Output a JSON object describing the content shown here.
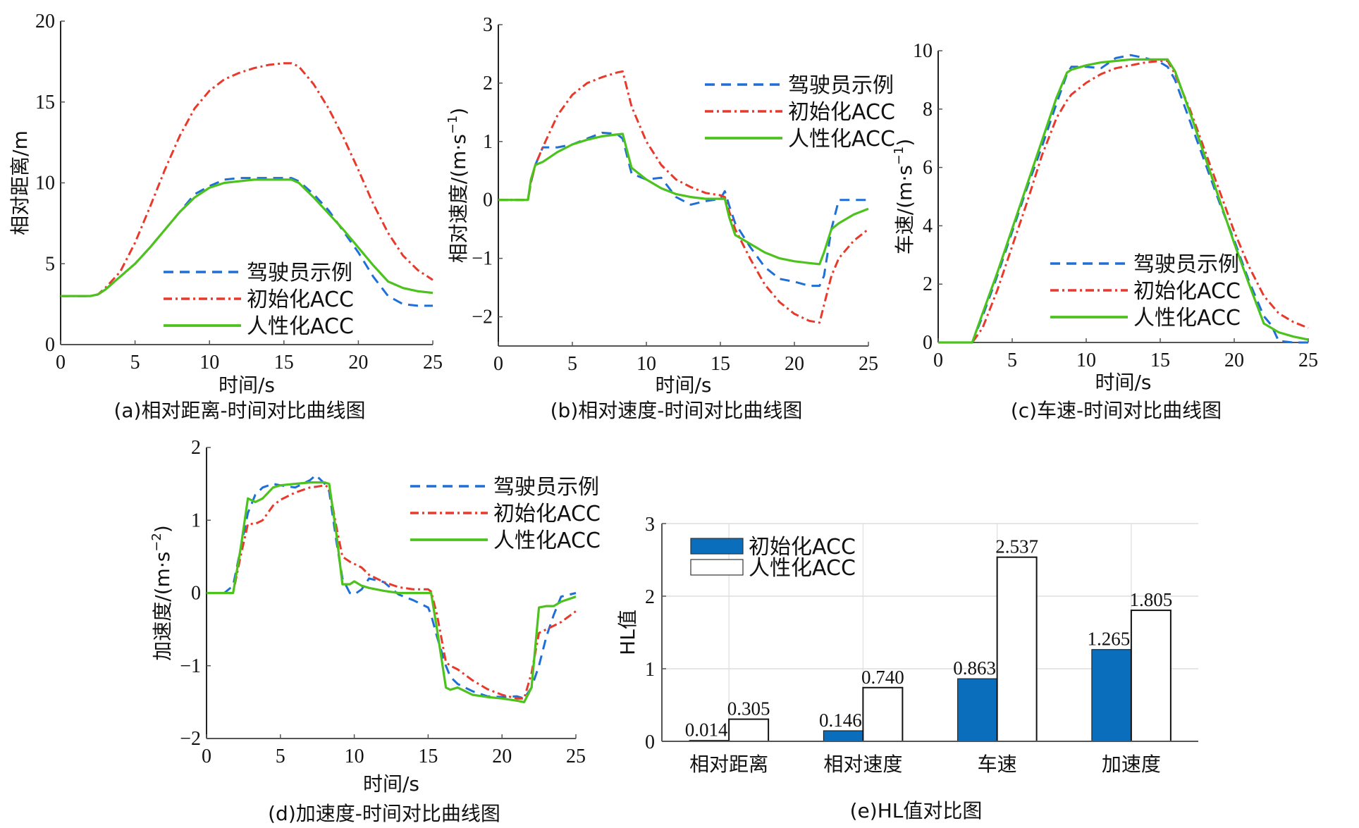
{
  "colors": {
    "driver": "#1f6fd6",
    "initial": "#e8392b",
    "human": "#4cc21c",
    "bar_initial": "#0a6ebd",
    "bar_human": "#ffffff",
    "axis": "#555555",
    "grid": "#dddddd"
  },
  "legend_labels": [
    "驾驶员示例",
    "初始化ACC",
    "人性化ACC"
  ],
  "chart_data": [
    {
      "id": "a",
      "type": "line",
      "caption": "(a)相对距离-时间对比曲线图",
      "xlabel": "时间/s",
      "ylabel": "相对距离/m",
      "xlim": [
        0,
        25
      ],
      "ylim": [
        0,
        20
      ],
      "xticks": [
        "0",
        "5",
        "10",
        "15",
        "20",
        "25"
      ],
      "yticks": [
        "0",
        "5",
        "10",
        "15",
        "20"
      ],
      "legend": "bottom-center",
      "x": [
        0,
        2,
        2.5,
        3,
        4,
        5,
        6,
        7,
        8,
        9,
        10,
        11,
        12,
        13,
        14,
        15,
        15.5,
        16,
        17,
        18,
        19,
        20,
        21,
        22,
        23,
        24,
        25
      ],
      "series": [
        {
          "name": "驾驶员示例",
          "style": "dash",
          "values": [
            3,
            3,
            3.1,
            3.4,
            4.2,
            5.0,
            6.0,
            7.1,
            8.2,
            9.3,
            9.8,
            10.2,
            10.3,
            10.3,
            10.3,
            10.3,
            10.3,
            10.1,
            9.3,
            8.3,
            7.0,
            5.7,
            4.2,
            3.0,
            2.5,
            2.4,
            2.4
          ]
        },
        {
          "name": "初始化ACC",
          "style": "dashdot",
          "values": [
            3,
            3,
            3.1,
            3.5,
            4.5,
            6.3,
            8.5,
            10.8,
            12.9,
            14.6,
            15.7,
            16.4,
            16.8,
            17.1,
            17.3,
            17.4,
            17.4,
            17.2,
            16.1,
            14.6,
            12.8,
            10.8,
            8.7,
            6.9,
            5.5,
            4.6,
            4.0
          ]
        },
        {
          "name": "人性化ACC",
          "style": "solid",
          "values": [
            3,
            3,
            3.1,
            3.4,
            4.2,
            5.0,
            6.0,
            7.1,
            8.2,
            9.1,
            9.7,
            10.0,
            10.1,
            10.2,
            10.2,
            10.2,
            10.2,
            10.0,
            9.1,
            8.1,
            7.1,
            6.0,
            4.9,
            3.9,
            3.5,
            3.3,
            3.2
          ]
        }
      ]
    },
    {
      "id": "b",
      "type": "line",
      "caption": "(b)相对速度-时间对比曲线图",
      "xlabel": "时间/s",
      "ylabel": "相对速度/(m·s",
      "ylabel_sup": "−1",
      "ylabel_end": ")",
      "xlim": [
        0,
        25
      ],
      "ylim": [
        -2.5,
        3
      ],
      "xticks": [
        "0",
        "5",
        "10",
        "15",
        "20",
        "25"
      ],
      "yticks": [
        "−2",
        "−1",
        "0",
        "1",
        "2",
        "3"
      ],
      "ytick_values": [
        -2,
        -1,
        0,
        1,
        2,
        3
      ],
      "legend": "top-right",
      "x": [
        0,
        2,
        2.2,
        2.5,
        3,
        4,
        5,
        6,
        7,
        8,
        8.4,
        9,
        10,
        11,
        12,
        13,
        14,
        15,
        15.3,
        15.6,
        16,
        17,
        18,
        19,
        20,
        21,
        21.7,
        22,
        22.5,
        23,
        24,
        25
      ],
      "series": [
        {
          "name": "驾驶员示例",
          "style": "dash",
          "values": [
            0,
            0,
            0.3,
            0.6,
            0.9,
            0.9,
            0.95,
            1.05,
            1.15,
            1.13,
            1.05,
            0.45,
            0.35,
            0.38,
            0.05,
            -0.08,
            -0.02,
            0.02,
            0.15,
            -0.1,
            -0.4,
            -0.8,
            -1.15,
            -1.35,
            -1.4,
            -1.47,
            -1.47,
            -1.3,
            -0.5,
            0,
            0,
            0
          ]
        },
        {
          "name": "初始化ACC",
          "style": "dashdot",
          "values": [
            0,
            0,
            0.3,
            0.6,
            0.9,
            1.45,
            1.8,
            2.0,
            2.1,
            2.18,
            2.2,
            1.6,
            1.0,
            0.6,
            0.35,
            0.22,
            0.12,
            0.08,
            0.05,
            -0.2,
            -0.5,
            -1.0,
            -1.45,
            -1.75,
            -1.95,
            -2.07,
            -2.1,
            -1.8,
            -1.3,
            -1.0,
            -0.7,
            -0.5
          ]
        },
        {
          "name": "人性化ACC",
          "style": "solid",
          "values": [
            0,
            0,
            0.35,
            0.6,
            0.65,
            0.82,
            0.95,
            1.03,
            1.09,
            1.12,
            1.13,
            0.55,
            0.35,
            0.2,
            0.1,
            0.05,
            0.02,
            0.02,
            0.02,
            -0.3,
            -0.6,
            -0.75,
            -0.9,
            -1.0,
            -1.05,
            -1.08,
            -1.1,
            -0.9,
            -0.5,
            -0.4,
            -0.25,
            -0.15
          ]
        }
      ]
    },
    {
      "id": "c",
      "type": "line",
      "caption": "(c)车速-时间对比曲线图",
      "xlabel": "时间/s",
      "ylabel": "车速/(m·s",
      "ylabel_sup": "−1",
      "ylabel_end": ")",
      "xlim": [
        0,
        25
      ],
      "ylim": [
        0,
        10
      ],
      "xticks": [
        "0",
        "5",
        "10",
        "15",
        "20",
        "25"
      ],
      "yticks": [
        "0",
        "2",
        "4",
        "6",
        "8",
        "10"
      ],
      "legend": "bottom-center",
      "x": [
        0,
        2,
        2.3,
        3,
        4,
        5,
        6,
        7,
        8,
        8.7,
        9,
        10,
        11,
        12,
        13,
        14,
        15,
        15.5,
        16,
        17,
        18,
        19,
        20,
        21,
        22,
        22.5,
        23,
        24,
        25
      ],
      "series": [
        {
          "name": "驾驶员示例",
          "style": "dash",
          "values": [
            0,
            0,
            0,
            0.9,
            2.3,
            3.8,
            5.3,
            6.7,
            8.2,
            9.2,
            9.45,
            9.45,
            9.4,
            9.75,
            9.85,
            9.75,
            9.6,
            9.45,
            9.0,
            7.6,
            6.2,
            4.8,
            3.5,
            2.1,
            0.9,
            0.6,
            0.05,
            0,
            0
          ]
        },
        {
          "name": "初始化ACC",
          "style": "dashdot",
          "values": [
            0,
            0,
            0,
            0.5,
            1.8,
            3.3,
            4.8,
            6.4,
            7.7,
            8.3,
            8.5,
            8.9,
            9.2,
            9.4,
            9.5,
            9.6,
            9.65,
            9.65,
            9.2,
            8.0,
            6.6,
            5.2,
            3.8,
            2.6,
            1.6,
            1.3,
            1.0,
            0.7,
            0.5
          ]
        },
        {
          "name": "人性化ACC",
          "style": "solid",
          "values": [
            0,
            0,
            0,
            1.0,
            2.4,
            3.9,
            5.4,
            6.9,
            8.4,
            9.25,
            9.35,
            9.5,
            9.6,
            9.65,
            9.7,
            9.7,
            9.7,
            9.7,
            9.3,
            7.9,
            6.4,
            4.9,
            3.4,
            2.0,
            0.65,
            0.5,
            0.35,
            0.2,
            0.1
          ]
        }
      ]
    },
    {
      "id": "d",
      "type": "line",
      "caption": "(d)加速度-时间对比曲线图",
      "xlabel": "时间/s",
      "ylabel": "加速度/(m·s",
      "ylabel_sup": "−2",
      "ylabel_end": ")",
      "xlim": [
        0,
        25
      ],
      "ylim": [
        -2,
        2
      ],
      "xticks": [
        "0",
        "5",
        "10",
        "15",
        "20",
        "25"
      ],
      "yticks": [
        "−2",
        "−1",
        "0",
        "1",
        "2"
      ],
      "ytick_values": [
        -2,
        -1,
        0,
        1,
        2
      ],
      "legend": "top-right",
      "x": [
        0,
        1.2,
        1.8,
        2.3,
        2.8,
        3.3,
        3.8,
        4.5,
        5,
        6,
        7,
        7.4,
        8,
        8.3,
        8.8,
        9.2,
        9.7,
        10,
        10.5,
        11,
        12,
        13,
        14,
        15,
        15.2,
        15.6,
        16.2,
        16.5,
        17,
        18,
        19,
        20,
        21,
        21.5,
        22,
        22.5,
        23,
        23.5,
        24,
        25
      ],
      "series": [
        {
          "name": "驾驶员示例",
          "style": "dash",
          "values": [
            0,
            0,
            0.1,
            0.6,
            1.1,
            1.35,
            1.45,
            1.5,
            1.48,
            1.45,
            1.55,
            1.62,
            1.5,
            1.4,
            0.7,
            0.2,
            0.0,
            -0.02,
            0.05,
            0.2,
            0.15,
            -0.02,
            -0.1,
            -0.2,
            -0.3,
            -0.6,
            -1.0,
            -1.15,
            -1.25,
            -1.35,
            -1.42,
            -1.43,
            -1.42,
            -1.45,
            -1.3,
            -1.0,
            -0.6,
            -0.3,
            -0.05,
            0
          ]
        },
        {
          "name": "初始化ACC",
          "style": "dashdot",
          "values": [
            0,
            0,
            0,
            0.5,
            0.95,
            0.95,
            1.0,
            1.2,
            1.28,
            1.38,
            1.45,
            1.46,
            1.48,
            1.45,
            0.9,
            0.5,
            0.43,
            0.4,
            0.35,
            0.25,
            0.15,
            0.08,
            0.05,
            0.05,
            0.02,
            -0.3,
            -0.95,
            -1.0,
            -1.05,
            -1.2,
            -1.32,
            -1.4,
            -1.45,
            -1.45,
            -1.1,
            -0.55,
            -0.5,
            -0.45,
            -0.4,
            -0.25
          ]
        },
        {
          "name": "人性化ACC",
          "style": "solid",
          "values": [
            0,
            0,
            0,
            0.6,
            1.3,
            1.25,
            1.3,
            1.45,
            1.48,
            1.5,
            1.52,
            1.52,
            1.52,
            1.5,
            0.8,
            0.12,
            0.12,
            0.16,
            0.1,
            0.07,
            0.03,
            0.0,
            0.0,
            0.0,
            0.0,
            -0.5,
            -1.3,
            -1.33,
            -1.3,
            -1.4,
            -1.43,
            -1.45,
            -1.48,
            -1.5,
            -1.3,
            -0.2,
            -0.18,
            -0.18,
            -0.12,
            -0.05
          ]
        }
      ]
    },
    {
      "id": "e",
      "type": "bar",
      "caption": "(e)HL值对比图",
      "xlabel": "",
      "ylabel": "HL值",
      "ylim": [
        0,
        3
      ],
      "yticks": [
        "0",
        "1",
        "2",
        "3"
      ],
      "grid": true,
      "legend": "top-left",
      "categories": [
        "相对距离",
        "相对速度",
        "车速",
        "加速度"
      ],
      "series": [
        {
          "name": "初始化ACC",
          "values": [
            0.014,
            0.146,
            0.863,
            1.265
          ],
          "labels": [
            "0.014",
            "0.146",
            "0.863",
            "1.265"
          ]
        },
        {
          "name": "人性化ACC",
          "values": [
            0.305,
            0.74,
            2.537,
            1.805
          ],
          "labels": [
            "0.305",
            "0.740",
            "2.537",
            "1.805"
          ]
        }
      ]
    }
  ]
}
